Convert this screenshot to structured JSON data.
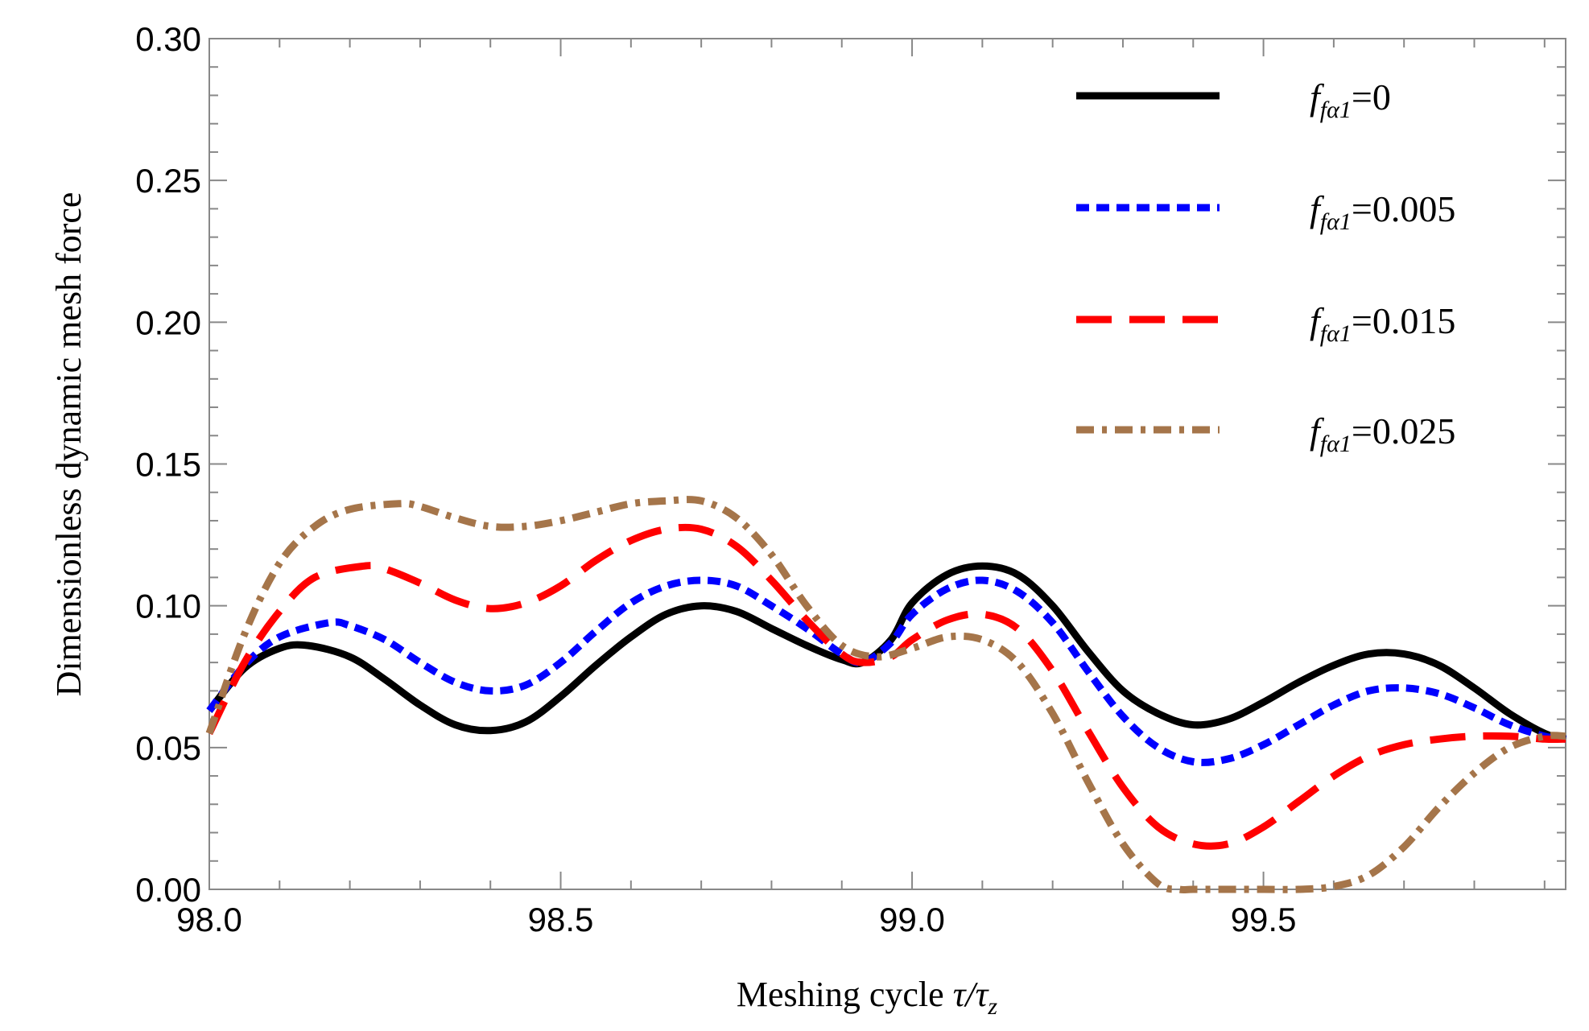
{
  "chart_data": {
    "type": "line",
    "title": "",
    "xlabel": "Meshing cycle τ/τz",
    "xlabel_main": "Meshing cycle ",
    "xlabel_math": "τ/τ",
    "xlabel_sub": "z",
    "ylabel": "Dimensionless dynamic mesh force",
    "xlim": [
      98.0,
      99.93
    ],
    "ylim": [
      0.0,
      0.3
    ],
    "xticks": [
      98.0,
      98.5,
      99.0,
      99.5
    ],
    "xtick_labels": [
      "98.0",
      "98.5",
      "99.0",
      "99.5"
    ],
    "yticks": [
      0.0,
      0.05,
      0.1,
      0.15,
      0.2,
      0.25,
      0.3
    ],
    "ytick_labels": [
      "0.00",
      "0.05",
      "0.10",
      "0.15",
      "0.20",
      "0.25",
      "0.30"
    ],
    "grid": false,
    "legend_position": "top-right",
    "series": [
      {
        "name": "f_fα1=0",
        "label_var": "f",
        "label_sub": "fα1",
        "label_eq": "=0",
        "color": "#000000",
        "style": "solid",
        "x": [
          98.0,
          98.05,
          98.1,
          98.14,
          98.2,
          98.25,
          98.3,
          98.35,
          98.4,
          98.45,
          98.5,
          98.55,
          98.6,
          98.65,
          98.7,
          98.75,
          98.8,
          98.85,
          98.9,
          98.93,
          98.97,
          99.0,
          99.05,
          99.1,
          99.15,
          99.2,
          99.25,
          99.3,
          99.35,
          99.4,
          99.45,
          99.5,
          99.55,
          99.6,
          99.65,
          99.7,
          99.75,
          99.8,
          99.85,
          99.9,
          99.93
        ],
        "y": [
          0.063,
          0.078,
          0.085,
          0.086,
          0.082,
          0.074,
          0.065,
          0.058,
          0.056,
          0.059,
          0.068,
          0.079,
          0.089,
          0.097,
          0.1,
          0.098,
          0.092,
          0.086,
          0.081,
          0.08,
          0.088,
          0.101,
          0.111,
          0.114,
          0.111,
          0.1,
          0.084,
          0.07,
          0.062,
          0.058,
          0.06,
          0.066,
          0.073,
          0.079,
          0.083,
          0.083,
          0.079,
          0.071,
          0.062,
          0.055,
          0.053
        ]
      },
      {
        "name": "f_fα1=0.005",
        "label_var": "f",
        "label_sub": "fα1",
        "label_eq": "=0.005",
        "color": "#0000ff",
        "style": "dotted",
        "x": [
          98.0,
          98.05,
          98.1,
          98.17,
          98.2,
          98.25,
          98.3,
          98.35,
          98.4,
          98.45,
          98.5,
          98.55,
          98.6,
          98.65,
          98.7,
          98.75,
          98.8,
          98.85,
          98.9,
          98.93,
          98.97,
          99.0,
          99.05,
          99.1,
          99.15,
          99.2,
          99.25,
          99.3,
          99.35,
          99.4,
          99.45,
          99.5,
          99.55,
          99.6,
          99.65,
          99.7,
          99.75,
          99.8,
          99.85,
          99.9,
          99.93
        ],
        "y": [
          0.063,
          0.079,
          0.089,
          0.094,
          0.093,
          0.088,
          0.08,
          0.073,
          0.07,
          0.072,
          0.08,
          0.091,
          0.101,
          0.107,
          0.109,
          0.107,
          0.1,
          0.092,
          0.083,
          0.08,
          0.087,
          0.097,
          0.106,
          0.109,
          0.105,
          0.094,
          0.077,
          0.061,
          0.05,
          0.045,
          0.046,
          0.051,
          0.058,
          0.065,
          0.07,
          0.071,
          0.069,
          0.064,
          0.058,
          0.054,
          0.053
        ]
      },
      {
        "name": "f_fα1=0.015",
        "label_var": "f",
        "label_sub": "fα1",
        "label_eq": "=0.015",
        "color": "#ff0000",
        "style": "dashed",
        "x": [
          98.0,
          98.05,
          98.1,
          98.15,
          98.22,
          98.25,
          98.3,
          98.35,
          98.4,
          98.45,
          98.5,
          98.55,
          98.6,
          98.65,
          98.7,
          98.75,
          98.8,
          98.85,
          98.9,
          98.93,
          98.97,
          99.0,
          99.05,
          99.1,
          99.15,
          99.2,
          99.25,
          99.3,
          99.35,
          99.4,
          99.45,
          99.5,
          99.55,
          99.6,
          99.65,
          99.7,
          99.75,
          99.8,
          99.85,
          99.9,
          99.93
        ],
        "y": [
          0.055,
          0.08,
          0.098,
          0.11,
          0.114,
          0.113,
          0.108,
          0.102,
          0.099,
          0.101,
          0.107,
          0.116,
          0.123,
          0.127,
          0.127,
          0.121,
          0.109,
          0.095,
          0.083,
          0.08,
          0.082,
          0.088,
          0.095,
          0.097,
          0.092,
          0.077,
          0.056,
          0.036,
          0.022,
          0.016,
          0.016,
          0.022,
          0.031,
          0.04,
          0.047,
          0.051,
          0.053,
          0.054,
          0.054,
          0.053,
          0.053
        ]
      },
      {
        "name": "f_fα1=0.025",
        "label_var": "f",
        "label_sub": "fα1",
        "label_eq": "=0.025",
        "color": "#a5754a",
        "style": "dashdot",
        "x": [
          98.0,
          98.05,
          98.1,
          98.15,
          98.2,
          98.27,
          98.3,
          98.35,
          98.4,
          98.45,
          98.5,
          98.55,
          98.6,
          98.65,
          98.7,
          98.75,
          98.8,
          98.85,
          98.9,
          98.95,
          99.0,
          99.05,
          99.1,
          99.15,
          99.2,
          99.25,
          99.3,
          99.35,
          99.38,
          99.4,
          99.45,
          99.5,
          99.55,
          99.6,
          99.65,
          99.7,
          99.75,
          99.8,
          99.85,
          99.9,
          99.93
        ],
        "y": [
          0.055,
          0.09,
          0.115,
          0.128,
          0.134,
          0.136,
          0.135,
          0.131,
          0.128,
          0.128,
          0.13,
          0.133,
          0.136,
          0.137,
          0.137,
          0.131,
          0.118,
          0.1,
          0.086,
          0.082,
          0.085,
          0.089,
          0.088,
          0.08,
          0.062,
          0.038,
          0.016,
          0.002,
          0.0,
          0.0,
          0.0,
          0.0,
          0.0,
          0.001,
          0.005,
          0.015,
          0.029,
          0.041,
          0.05,
          0.054,
          0.054
        ]
      }
    ]
  }
}
